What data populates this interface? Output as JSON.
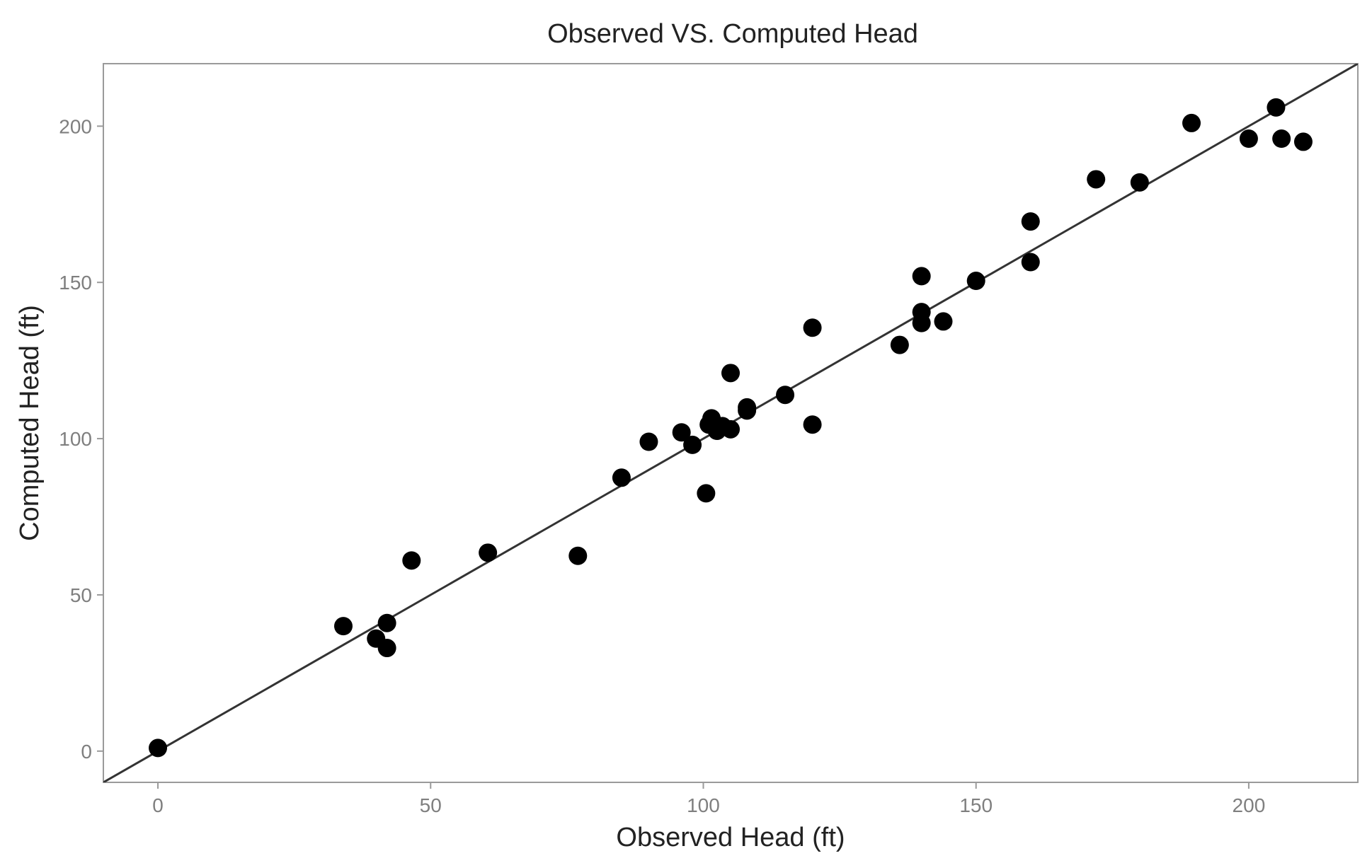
{
  "chart_data": {
    "type": "scatter",
    "title": "Observed VS. Computed Head",
    "xlabel": "Observed Head (ft)",
    "ylabel": "Computed Head (ft)",
    "xlim": [
      -10,
      220
    ],
    "ylim": [
      -10,
      220
    ],
    "x_ticks": [
      0,
      50,
      100,
      150,
      200
    ],
    "y_ticks": [
      0,
      50,
      100,
      150,
      200
    ],
    "x_tick_labels": [
      "0",
      "50",
      "100",
      "150",
      "200"
    ],
    "y_tick_labels": [
      "0",
      "50",
      "100",
      "150",
      "200"
    ],
    "grid": false,
    "legend": "none",
    "reference_line": {
      "type": "identity",
      "from": [
        -10,
        -10
      ],
      "to": [
        220,
        220
      ]
    },
    "points": [
      {
        "x": 0,
        "y": 1
      },
      {
        "x": 34,
        "y": 40
      },
      {
        "x": 40,
        "y": 36
      },
      {
        "x": 42,
        "y": 41
      },
      {
        "x": 42,
        "y": 33
      },
      {
        "x": 46.5,
        "y": 61
      },
      {
        "x": 60.5,
        "y": 63.5
      },
      {
        "x": 77,
        "y": 62.5
      },
      {
        "x": 85,
        "y": 87.5
      },
      {
        "x": 90,
        "y": 99
      },
      {
        "x": 96,
        "y": 102
      },
      {
        "x": 98,
        "y": 98
      },
      {
        "x": 100.5,
        "y": 82.5
      },
      {
        "x": 101,
        "y": 104.5
      },
      {
        "x": 101.5,
        "y": 106.5
      },
      {
        "x": 102.5,
        "y": 102.5
      },
      {
        "x": 103.5,
        "y": 104
      },
      {
        "x": 105,
        "y": 103
      },
      {
        "x": 105,
        "y": 121
      },
      {
        "x": 108,
        "y": 109
      },
      {
        "x": 108,
        "y": 110
      },
      {
        "x": 115,
        "y": 114
      },
      {
        "x": 120,
        "y": 104.5
      },
      {
        "x": 120,
        "y": 135.5
      },
      {
        "x": 136,
        "y": 130
      },
      {
        "x": 140,
        "y": 137
      },
      {
        "x": 140,
        "y": 140.5
      },
      {
        "x": 140,
        "y": 152
      },
      {
        "x": 144,
        "y": 137.5
      },
      {
        "x": 150,
        "y": 150.5
      },
      {
        "x": 160,
        "y": 156.5
      },
      {
        "x": 160,
        "y": 169.5
      },
      {
        "x": 172,
        "y": 183
      },
      {
        "x": 180,
        "y": 182
      },
      {
        "x": 189.5,
        "y": 201
      },
      {
        "x": 200,
        "y": 196
      },
      {
        "x": 205,
        "y": 206
      },
      {
        "x": 206,
        "y": 196
      },
      {
        "x": 210,
        "y": 195
      }
    ],
    "colors": {
      "points": "#000000",
      "line": "#333333",
      "panel_border": "#9a9a9a",
      "tick_label": "#7f7f7f",
      "title": "#222222"
    }
  }
}
